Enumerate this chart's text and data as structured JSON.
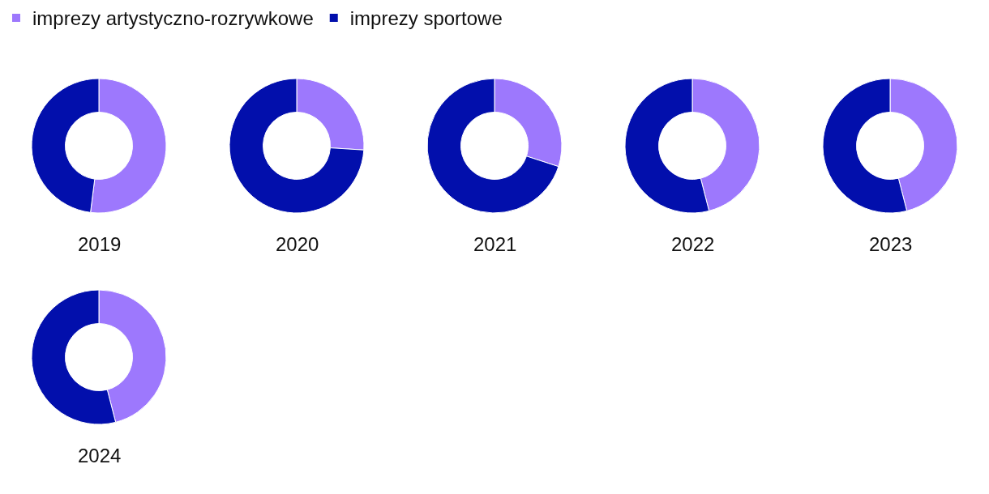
{
  "chart_data": [
    {
      "type": "donut",
      "title": "2019",
      "categories": [
        "imprezy artystyczno-rozrywkowe",
        "imprezy sportowe"
      ],
      "values": [
        52,
        48
      ],
      "colors": [
        "#9d78fd",
        "#020fac"
      ],
      "legend": "top"
    },
    {
      "type": "donut",
      "title": "2020",
      "categories": [
        null,
        null
      ],
      "values": [
        26,
        74
      ],
      "colors": [
        "#9d78fd",
        "#020fac"
      ]
    },
    {
      "type": "donut",
      "title": "2021",
      "categories": [
        null,
        null
      ],
      "values": [
        30,
        70
      ],
      "colors": [
        "#9d78fd",
        "#020fac"
      ]
    },
    {
      "type": "donut",
      "title": "2022",
      "categories": [
        null,
        null
      ],
      "values": [
        46,
        54
      ],
      "colors": [
        "#9d78fd",
        "#020fac"
      ]
    },
    {
      "type": "donut",
      "title": "2023",
      "categories": [
        null,
        null
      ],
      "values": [
        46,
        54
      ],
      "colors": [
        "#9d78fd",
        "#020fac"
      ]
    },
    {
      "type": "donut",
      "title": "2024",
      "categories": [
        null,
        null
      ],
      "values": [
        46,
        54
      ],
      "colors": [
        "#9d78fd",
        "#020fac"
      ]
    }
  ]
}
